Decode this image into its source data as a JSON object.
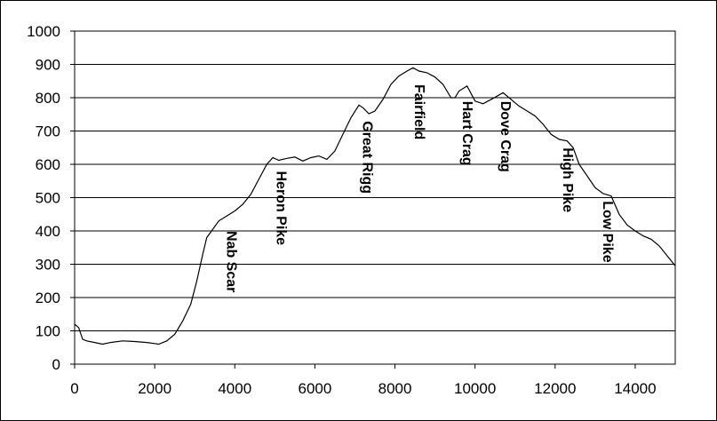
{
  "chart_data": {
    "type": "line",
    "title": "",
    "xlabel": "",
    "ylabel": "",
    "xlim": [
      0,
      15000
    ],
    "ylim": [
      0,
      1000
    ],
    "x_ticks": [
      "0",
      "2000",
      "4000",
      "6000",
      "8000",
      "10000",
      "12000",
      "14000"
    ],
    "y_ticks": [
      "0",
      "100",
      "200",
      "300",
      "400",
      "500",
      "600",
      "700",
      "800",
      "900",
      "1000"
    ],
    "grid": "horizontal",
    "legend": "none",
    "line_color": "#000000",
    "series": [
      {
        "x": [
          0,
          100,
          200,
          300,
          500,
          700,
          900,
          1200,
          1500,
          1800,
          2000,
          2100,
          2300,
          2500,
          2700,
          2900,
          3050,
          3200,
          3300,
          3450,
          3600,
          3800,
          4000,
          4200,
          4400,
          4600,
          4800,
          4950,
          5100,
          5300,
          5500,
          5700,
          5900,
          6100,
          6300,
          6500,
          6700,
          6900,
          7100,
          7200,
          7350,
          7500,
          7700,
          7900,
          8100,
          8300,
          8450,
          8600,
          8800,
          9000,
          9200,
          9400,
          9500,
          9600,
          9800,
          10000,
          10200,
          10450,
          10700,
          10900,
          11100,
          11300,
          11500,
          11700,
          11900,
          12100,
          12300,
          12450,
          12600,
          12800,
          13000,
          13200,
          13400,
          13600,
          13800,
          14000,
          14200,
          14400,
          14600,
          14800,
          15000
        ],
        "y": [
          120,
          110,
          75,
          70,
          65,
          60,
          65,
          70,
          68,
          65,
          62,
          60,
          70,
          90,
          130,
          180,
          250,
          330,
          380,
          405,
          430,
          445,
          460,
          480,
          510,
          555,
          600,
          620,
          612,
          618,
          622,
          610,
          620,
          625,
          615,
          640,
          690,
          740,
          778,
          770,
          752,
          760,
          795,
          840,
          865,
          880,
          890,
          880,
          875,
          862,
          840,
          800,
          800,
          820,
          835,
          790,
          782,
          798,
          815,
          795,
          775,
          760,
          745,
          720,
          690,
          675,
          670,
          650,
          600,
          565,
          530,
          512,
          505,
          450,
          418,
          400,
          385,
          375,
          355,
          325,
          295
        ]
      }
    ],
    "annotations": [
      {
        "text": "Nab Scar",
        "x": 3800,
        "y": 400
      },
      {
        "text": "Heron Pike",
        "x": 5050,
        "y": 580
      },
      {
        "text": "Great Rigg",
        "x": 7200,
        "y": 730
      },
      {
        "text": "Fairfield",
        "x": 8500,
        "y": 840
      },
      {
        "text": "Hart Crag",
        "x": 9700,
        "y": 790
      },
      {
        "text": "Dove Crag",
        "x": 10650,
        "y": 790
      },
      {
        "text": "High Pike",
        "x": 12200,
        "y": 650
      },
      {
        "text": "Low Pike",
        "x": 13200,
        "y": 490
      }
    ]
  }
}
